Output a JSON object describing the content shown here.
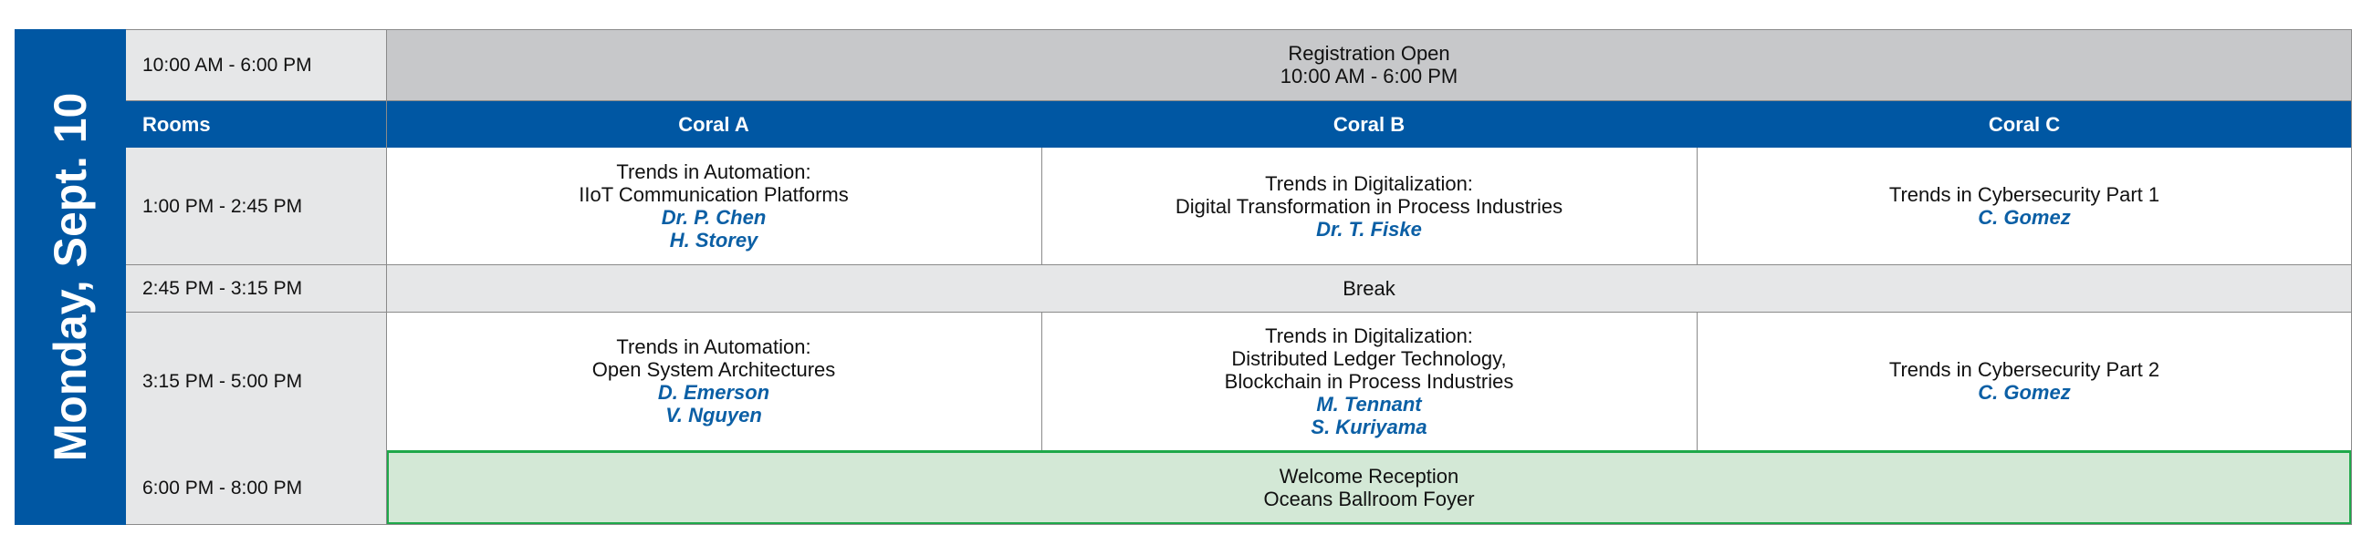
{
  "day": "Monday, Sept. 10",
  "registration": {
    "time": "10:00 AM - 6:00 PM",
    "title": "Registration Open",
    "hours": "10:00 AM - 6:00 PM"
  },
  "rooms": {
    "label": "Rooms",
    "names": [
      "Coral A",
      "Coral B",
      "Coral C"
    ]
  },
  "session1": {
    "time": "1:00 PM - 2:45 PM",
    "coral_a": {
      "line1": "Trends in Automation:",
      "line2": "IIoT Communication Platforms",
      "speakers": [
        "Dr. P. Chen",
        "H. Storey"
      ]
    },
    "coral_b": {
      "line1": "Trends in Digitalization:",
      "line2": "Digital Transformation in Process Industries",
      "speakers": [
        "Dr. T. Fiske"
      ]
    },
    "coral_c": {
      "line1": "Trends in Cybersecurity Part 1",
      "speakers": [
        "C. Gomez"
      ]
    }
  },
  "break": {
    "time": "2:45 PM - 3:15 PM",
    "label": "Break"
  },
  "session2": {
    "time": "3:15 PM - 5:00 PM",
    "coral_a": {
      "line1": "Trends in Automation:",
      "line2": "Open System Architectures",
      "speakers": [
        "D. Emerson",
        "V. Nguyen"
      ]
    },
    "coral_b": {
      "line1": "Trends in Digitalization:",
      "line2": "Distributed Ledger Technology,",
      "line3": "Blockchain in Process Industries",
      "speakers": [
        "M. Tennant",
        "S. Kuriyama"
      ]
    },
    "coral_c": {
      "line1": "Trends in Cybersecurity Part 2",
      "speakers": [
        "C. Gomez"
      ]
    }
  },
  "reception": {
    "time": "6:00 PM - 8:00 PM",
    "title": "Welcome Reception",
    "location": "Oceans Ballroom Foyer"
  },
  "colors": {
    "banner": "#0057a3",
    "speaker": "#0b5fa5",
    "reception_fill": "#d3e8d6",
    "reception_border": "#1ea84a",
    "registration_fill": "#c7c8ca"
  }
}
